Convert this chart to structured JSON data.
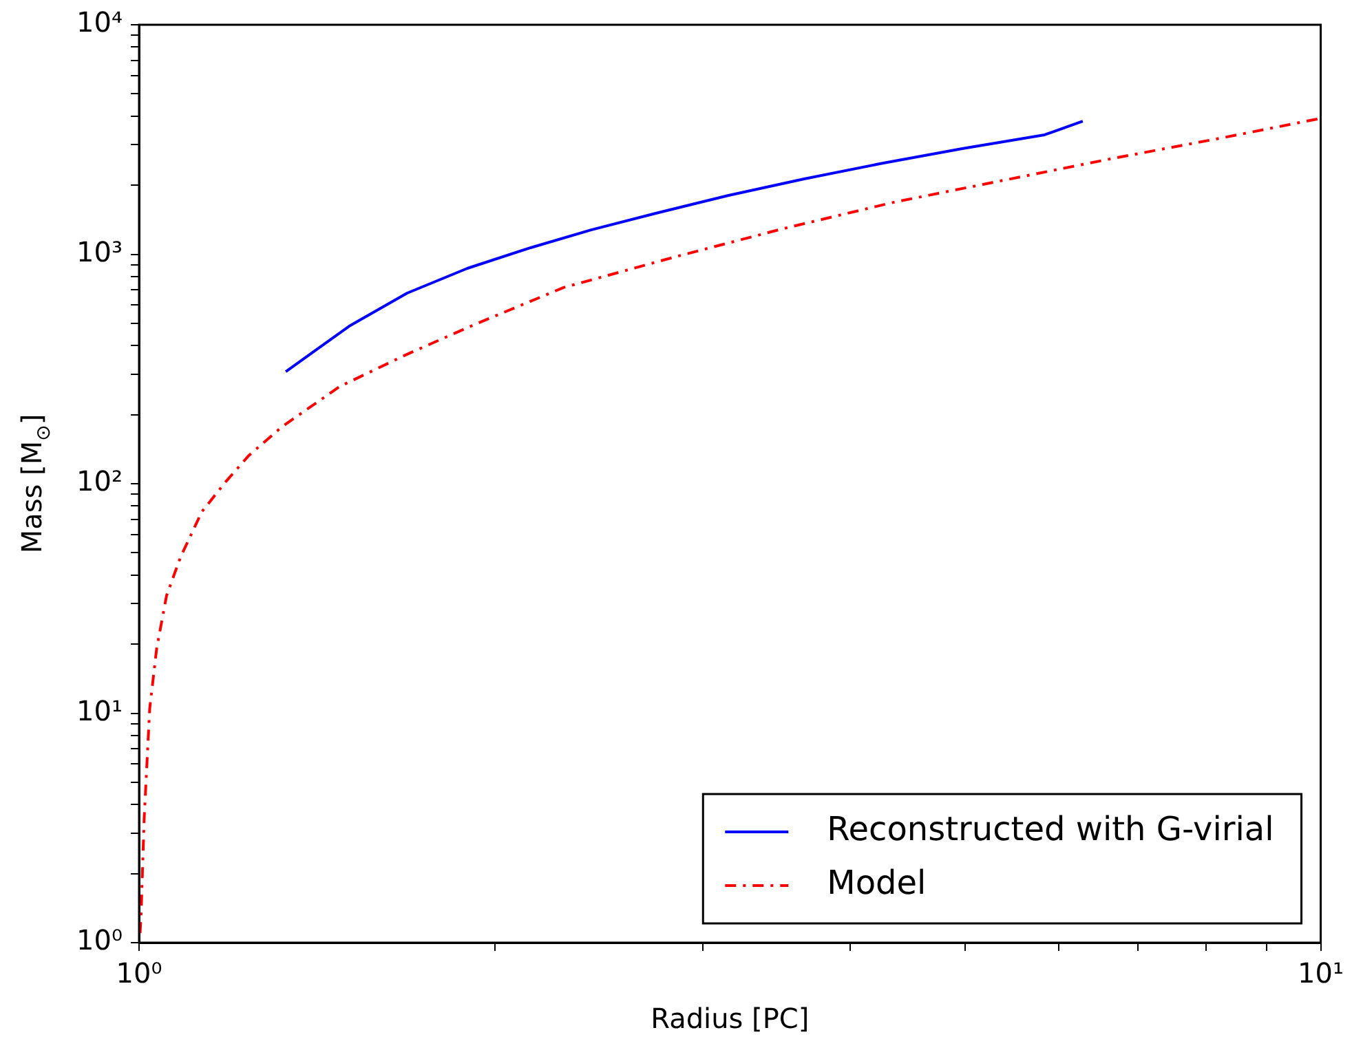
{
  "chart_data": {
    "type": "line",
    "xlabel": "Radius [PC]",
    "ylabel": "Mass [M$_{⊙}$]",
    "log": "xy",
    "grid": false,
    "legend": "bottom right",
    "marker": "none",
    "xlim": [
      1,
      10
    ],
    "ylim": [
      1,
      10000
    ],
    "xticks": [
      {
        "value": 1,
        "label": "10⁰"
      },
      {
        "value": 2,
        "label": null
      },
      {
        "value": 3,
        "label": null
      },
      {
        "value": 4,
        "label": null
      },
      {
        "value": 5,
        "label": null
      },
      {
        "value": 6,
        "label": null
      },
      {
        "value": 7,
        "label": null
      },
      {
        "value": 8,
        "label": null
      },
      {
        "value": 9,
        "label": null
      },
      {
        "value": 10,
        "label": "10¹"
      }
    ],
    "yticks": [
      {
        "value": 1,
        "label": "10⁰"
      },
      {
        "value": 2,
        "label": null
      },
      {
        "value": 3,
        "label": null
      },
      {
        "value": 4,
        "label": null
      },
      {
        "value": 5,
        "label": null
      },
      {
        "value": 6,
        "label": null
      },
      {
        "value": 7,
        "label": null
      },
      {
        "value": 8,
        "label": null
      },
      {
        "value": 9,
        "label": null
      },
      {
        "value": 10,
        "label": "10¹"
      },
      {
        "value": 20,
        "label": null
      },
      {
        "value": 30,
        "label": null
      },
      {
        "value": 40,
        "label": null
      },
      {
        "value": 50,
        "label": null
      },
      {
        "value": 60,
        "label": null
      },
      {
        "value": 70,
        "label": null
      },
      {
        "value": 80,
        "label": null
      },
      {
        "value": 90,
        "label": null
      },
      {
        "value": 100,
        "label": "10²"
      },
      {
        "value": 200,
        "label": null
      },
      {
        "value": 300,
        "label": null
      },
      {
        "value": 400,
        "label": null
      },
      {
        "value": 500,
        "label": null
      },
      {
        "value": 600,
        "label": null
      },
      {
        "value": 700,
        "label": null
      },
      {
        "value": 800,
        "label": null
      },
      {
        "value": 900,
        "label": null
      },
      {
        "value": 1000,
        "label": "10³"
      },
      {
        "value": 2000,
        "label": null
      },
      {
        "value": 3000,
        "label": null
      },
      {
        "value": 4000,
        "label": null
      },
      {
        "value": 5000,
        "label": null
      },
      {
        "value": 6000,
        "label": null
      },
      {
        "value": 7000,
        "label": null
      },
      {
        "value": 8000,
        "label": null
      },
      {
        "value": 9000,
        "label": null
      },
      {
        "value": 10000,
        "label": "10⁴"
      }
    ],
    "series": [
      {
        "name": "Reconstructed with G-virial",
        "color": "#0000ff",
        "line_style": "solid",
        "x": [
          1.331,
          1.506,
          1.686,
          1.896,
          2.145,
          2.413,
          2.737,
          3.154,
          3.655,
          4.234,
          4.973,
          5.838,
          6.29
        ],
        "values": [
          308,
          486,
          677,
          868,
          1068,
          1277,
          1508,
          1805,
          2130,
          2478,
          2886,
          3314,
          3802
        ]
      },
      {
        "name": "Model",
        "color": "#ff0000",
        "line_style": "dashdot",
        "x": [
          1.002,
          1.004,
          1.01,
          1.021,
          1.035,
          1.055,
          1.084,
          1.13,
          1.184,
          1.239,
          1.321,
          1.478,
          1.681,
          1.921,
          2.287,
          2.834,
          3.511,
          4.348,
          5.387,
          6.674,
          8.269,
          10
        ],
        "values": [
          1.1,
          1.34,
          3.47,
          10.5,
          19.2,
          32.5,
          47.8,
          75.4,
          102,
          133,
          177,
          265,
          364,
          493,
          716,
          970,
          1294,
          1683,
          2099,
          2618,
          3221,
          3910
        ]
      }
    ]
  }
}
